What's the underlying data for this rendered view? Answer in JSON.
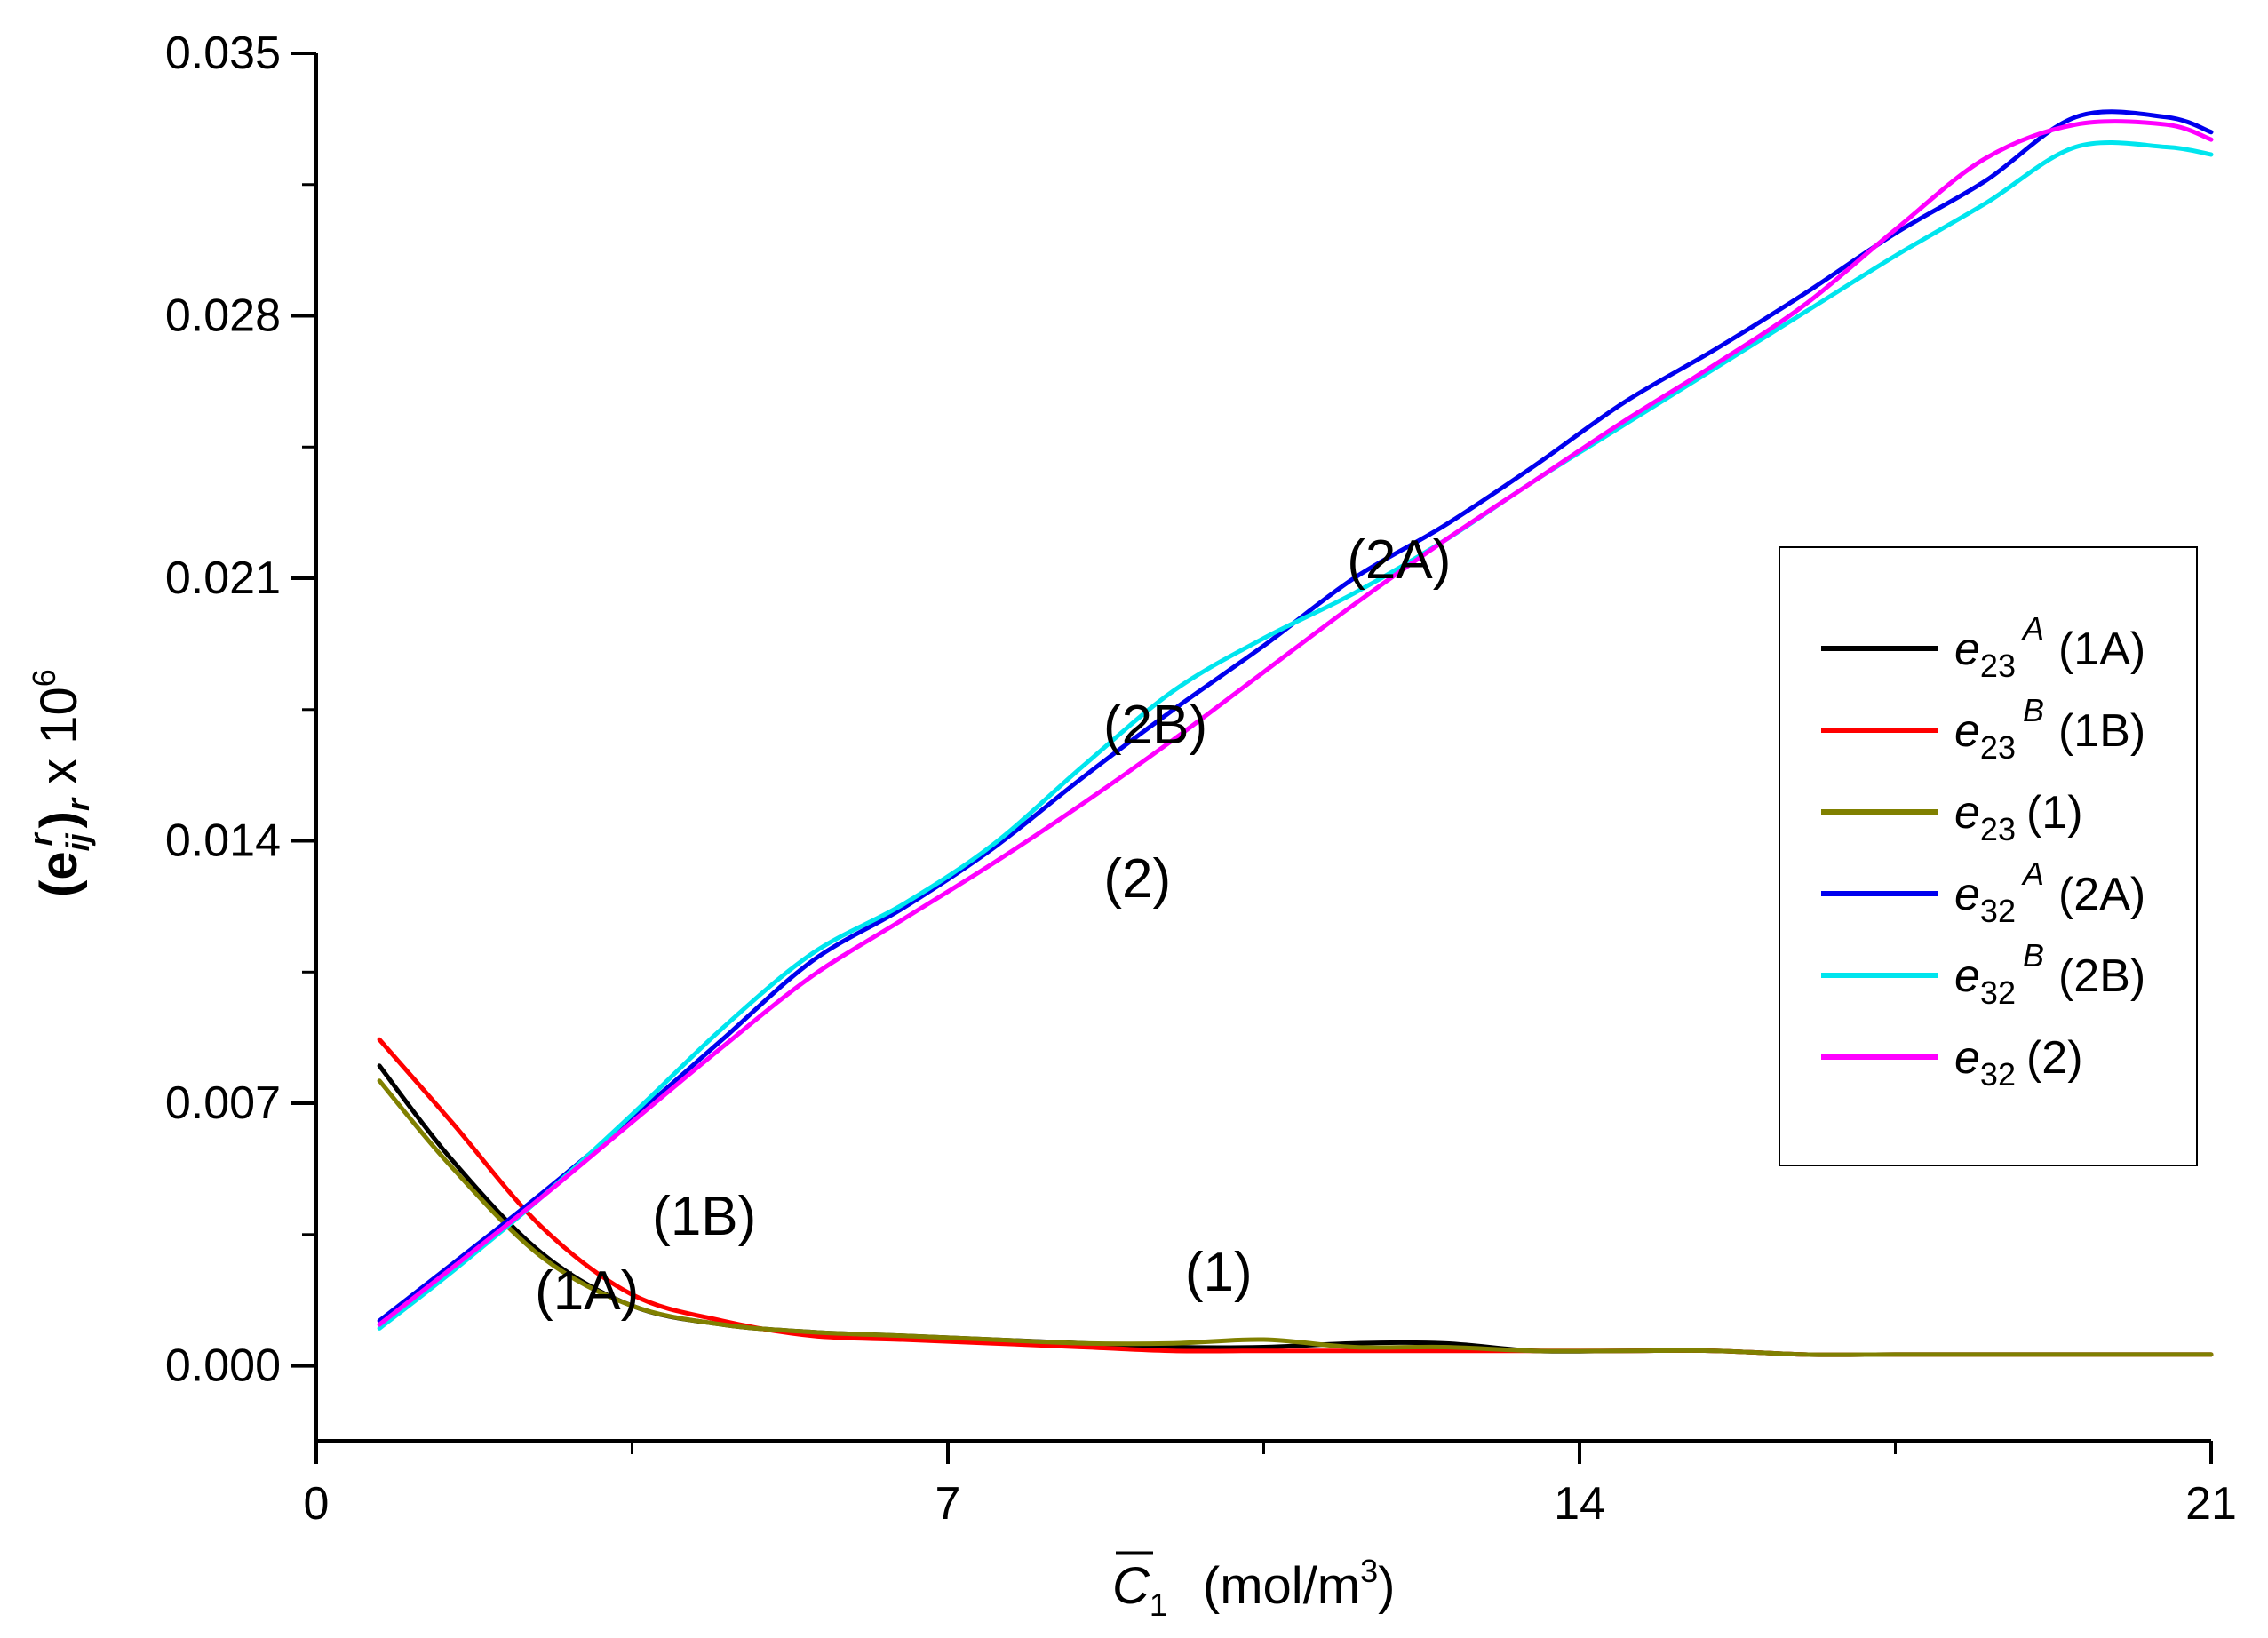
{
  "chart_data": {
    "type": "line",
    "xlabel": {
      "symbol": "C",
      "subscript": "1",
      "units_prefix": "(mol/m",
      "units_exp": "3",
      "units_suffix": ")"
    },
    "ylabel": {
      "open": "(",
      "symbol": "e",
      "subscript": "ij",
      "superscript": "r",
      "close": ")",
      "outer_subscript": "r",
      "suffix": " x 10",
      "exp": "6"
    },
    "xlim": [
      0,
      21
    ],
    "ylim": [
      -0.002,
      0.035
    ],
    "x_ticks": [
      0,
      7,
      14,
      21
    ],
    "x_tick_labels": [
      "0",
      "7",
      "14",
      "21"
    ],
    "y_ticks": [
      0,
      0.007,
      0.014,
      0.021,
      0.028,
      0.035
    ],
    "y_tick_labels": [
      "0.000",
      "0.007",
      "0.014",
      "0.021",
      "0.028",
      "0.035"
    ],
    "x": [
      0.7,
      1.5,
      2.5,
      3.5,
      4.5,
      5.5,
      6.5,
      7.5,
      8.5,
      9.5,
      10.5,
      11.5,
      12.5,
      13.5,
      14.5,
      15.5,
      16.5,
      17.5,
      18.5,
      19.5,
      20.5,
      21
    ],
    "series": [
      {
        "name": "e23A",
        "sym": "e",
        "sub": "23",
        "sup": "A",
        "tag": "(1A)",
        "color": "#000000",
        "values": [
          0.008,
          0.0055,
          0.003,
          0.0016,
          0.0011,
          0.0009,
          0.0008,
          0.0007,
          0.0006,
          0.0005,
          0.0005,
          0.0006,
          0.0006,
          0.0004,
          0.0004,
          0.0004,
          0.0003,
          0.0003,
          0.0003,
          0.0003,
          0.0003,
          0.0003
        ]
      },
      {
        "name": "e23B",
        "sym": "e",
        "sub": "23",
        "sup": "B",
        "tag": "(1B)",
        "color": "#ff0000",
        "values": [
          0.0087,
          0.0065,
          0.0037,
          0.0019,
          0.0012,
          0.0008,
          0.0007,
          0.0006,
          0.0005,
          0.0004,
          0.0004,
          0.0004,
          0.0004,
          0.0004,
          0.0004,
          0.0004,
          0.0003,
          0.0003,
          0.0003,
          0.0003,
          0.0003,
          0.0003
        ]
      },
      {
        "name": "e23",
        "sym": "e",
        "sub": "23",
        "sup": "",
        "tag": "(1)",
        "color": "#808000",
        "values": [
          0.0076,
          0.0053,
          0.0029,
          0.0016,
          0.0011,
          0.0009,
          0.0008,
          0.0007,
          0.0006,
          0.0006,
          0.0007,
          0.0005,
          0.0005,
          0.0004,
          0.0004,
          0.0004,
          0.0003,
          0.0003,
          0.0003,
          0.0003,
          0.0003,
          0.0003
        ]
      },
      {
        "name": "e32A",
        "sym": "e",
        "sub": "32",
        "sup": "A",
        "tag": "(2A)",
        "color": "#0000ee",
        "values": [
          0.0012,
          0.0027,
          0.0046,
          0.0066,
          0.0087,
          0.0108,
          0.0122,
          0.0138,
          0.0157,
          0.0175,
          0.0192,
          0.021,
          0.0224,
          0.024,
          0.0257,
          0.0271,
          0.0286,
          0.0302,
          0.0316,
          0.0333,
          0.0333,
          0.0329
        ]
      },
      {
        "name": "e32B",
        "sym": "e",
        "sub": "32",
        "sup": "B",
        "tag": "(2B)",
        "color": "#00e5ee",
        "values": [
          0.001,
          0.0025,
          0.0045,
          0.0067,
          0.009,
          0.011,
          0.0123,
          0.0139,
          0.016,
          0.018,
          0.0194,
          0.0206,
          0.022,
          0.0236,
          0.0251,
          0.0266,
          0.0281,
          0.0296,
          0.031,
          0.0325,
          0.0325,
          0.0323
        ]
      },
      {
        "name": "e32",
        "sym": "e",
        "sub": "32",
        "sup": "",
        "tag": "(2)",
        "color": "#ff00ff",
        "values": [
          0.0011,
          0.0026,
          0.0045,
          0.0065,
          0.0085,
          0.0104,
          0.0119,
          0.0134,
          0.015,
          0.0167,
          0.0185,
          0.0203,
          0.022,
          0.0236,
          0.0252,
          0.0267,
          0.0283,
          0.0303,
          0.0322,
          0.0331,
          0.0331,
          0.0327
        ]
      }
    ],
    "annotations": [
      {
        "text": "(1A)",
        "x": 3.0,
        "y": 0.0015
      },
      {
        "text": "(1B)",
        "x": 4.3,
        "y": 0.0035
      },
      {
        "text": "(1)",
        "x": 10.0,
        "y": 0.002
      },
      {
        "text": "(2)",
        "x": 9.1,
        "y": 0.0125
      },
      {
        "text": "(2B)",
        "x": 9.3,
        "y": 0.0166
      },
      {
        "text": "(2A)",
        "x": 12.0,
        "y": 0.021
      }
    ],
    "legend_position": "right-middle",
    "grid": false
  }
}
